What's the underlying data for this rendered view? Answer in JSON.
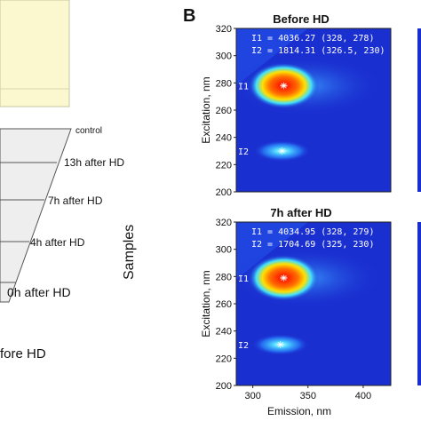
{
  "panel_a": {
    "legend_row_label": "control",
    "rows": [
      "13h after HD",
      "7h after HD",
      "4h after HD",
      "0h after HD"
    ],
    "bottom_label": "fore HD",
    "axis_label": "Samples"
  },
  "panel_b": {
    "letter": "B",
    "colors": {
      "bg": "#1a2fd0",
      "hot": "#ff2000",
      "warm": "#ffe000",
      "mid": "#20d0ff"
    }
  },
  "chart_data": [
    {
      "type": "heatmap",
      "title": "Before HD",
      "xlabel": "",
      "ylabel": "Excitation, nm",
      "xlim": [
        285,
        425
      ],
      "ylim": [
        200,
        320
      ],
      "yticks": [
        200,
        220,
        240,
        260,
        280,
        300,
        320
      ],
      "xticks": [],
      "peaks": [
        {
          "label": "I1",
          "x": 328,
          "y": 278,
          "value": 4036.27
        },
        {
          "label": "I2",
          "x": 326.5,
          "y": 230,
          "value": 1814.31
        }
      ],
      "annotation_lines": [
        "I1 = 4036.27 (328, 278)",
        "I2 = 1814.31 (326.5, 230)"
      ]
    },
    {
      "type": "heatmap",
      "title": "7h after HD",
      "xlabel": "Emission, nm",
      "ylabel": "Excitation, nm",
      "xlim": [
        285,
        425
      ],
      "ylim": [
        200,
        320
      ],
      "yticks": [
        200,
        220,
        240,
        260,
        280,
        300,
        320
      ],
      "xticks": [
        300,
        350,
        400
      ],
      "peaks": [
        {
          "label": "I1",
          "x": 328,
          "y": 279,
          "value": 4034.95
        },
        {
          "label": "I2",
          "x": 325,
          "y": 230,
          "value": 1704.69
        }
      ],
      "annotation_lines": [
        "I1 = 4034.95 (328, 279)",
        "I2 = 1704.69 (325, 230)"
      ]
    }
  ]
}
